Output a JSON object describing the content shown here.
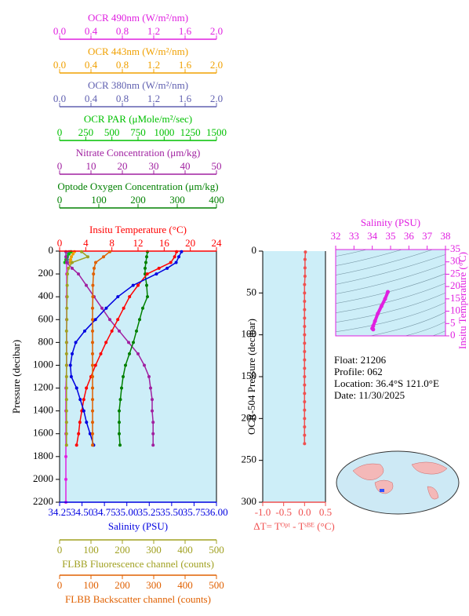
{
  "chart_data": [
    {
      "type": "line",
      "ylabel": "Pressure (decibar)",
      "ylim": [
        0,
        2200
      ],
      "invert_y": true,
      "yticks": [
        0,
        200,
        400,
        600,
        800,
        1000,
        1200,
        1400,
        1600,
        1800,
        2000,
        2200
      ],
      "background": "#cdeef8",
      "top_axes": [
        {
          "label": "OCR 490nm (W/m²/nm)",
          "color": "#e020e0",
          "xlim": [
            0,
            2
          ],
          "xticks": [
            {
              "value": 0,
              "label": "0.0"
            },
            0.4,
            0.8,
            1.2,
            1.6,
            {
              "value": 2,
              "label": "2.0"
            }
          ],
          "pressure": [
            5,
            25,
            50,
            75,
            100,
            200,
            400,
            600,
            800,
            1000,
            1200,
            1400,
            1600,
            1800,
            2000,
            2200
          ],
          "values": [
            0.14,
            0.12,
            0.1,
            0.09,
            0.09,
            0.09,
            0.09,
            0.09,
            0.09,
            0.09,
            0.08,
            0.08,
            0.08,
            0.08,
            0.08,
            0.08
          ]
        },
        {
          "label": "OCR 443nm (W/m²/nm)",
          "color": "#f0a000",
          "xlim": [
            0,
            2
          ],
          "xticks": [
            {
              "value": 0,
              "label": "0.0"
            },
            0.4,
            0.8,
            1.2,
            1.6,
            {
              "value": 2,
              "label": "2.0"
            }
          ],
          "pressure": [
            5,
            25,
            50,
            75,
            100
          ],
          "values": [
            0.19,
            0.17,
            0.15,
            0.14,
            0.13
          ]
        },
        {
          "label": "OCR 380nm (W/m²/nm)",
          "color": "#6060b0",
          "xlim": [
            0,
            2
          ],
          "xticks": [
            {
              "value": 0,
              "label": "0.0"
            },
            0.4,
            0.8,
            1.2,
            1.6,
            {
              "value": 2,
              "label": "2.0"
            }
          ],
          "pressure": [
            5,
            25,
            50,
            75,
            100
          ],
          "values": [
            0.12,
            0.11,
            0.1,
            0.1,
            0.1
          ]
        },
        {
          "label": "OCR PAR (μMole/m²/sec)",
          "color": "#00c000",
          "xlim": [
            0,
            1500
          ],
          "xticks": [
            0,
            250,
            500,
            750,
            1000,
            1250,
            1500
          ],
          "pressure": [
            5,
            25,
            50,
            75,
            100
          ],
          "values": [
            110,
            90,
            70,
            60,
            50
          ]
        },
        {
          "label": "Nitrate Concentration (μm/kg)",
          "color": "#a020a0",
          "xlim": [
            0,
            50
          ],
          "xticks": [
            0,
            10,
            20,
            30,
            40,
            50
          ],
          "pressure": [
            5,
            50,
            100,
            150,
            200,
            300,
            400,
            500,
            600,
            700,
            800,
            900,
            1000,
            1100,
            1200,
            1300,
            1400,
            1500,
            1600,
            1700
          ],
          "values": [
            2,
            2,
            2.2,
            4,
            6,
            8.5,
            11,
            13.5,
            16,
            19,
            22,
            25,
            27,
            28.5,
            29,
            29.5,
            29.5,
            29.8,
            29.8,
            29.8
          ]
        },
        {
          "label": "Optode Oxygen Concentration (μm/kg)",
          "color": "#008000",
          "xlim": [
            0,
            400
          ],
          "xticks": [
            0,
            100,
            200,
            300,
            400
          ],
          "pressure": [
            5,
            50,
            100,
            150,
            200,
            300,
            400,
            500,
            600,
            700,
            800,
            900,
            1000,
            1100,
            1200,
            1300,
            1400,
            1500,
            1600,
            1700
          ],
          "values": [
            224,
            222,
            220,
            218,
            218,
            222,
            224,
            212,
            204,
            196,
            188,
            178,
            168,
            162,
            158,
            155,
            152,
            152,
            152,
            154
          ]
        },
        {
          "label": "Insitu Temperature (°C)",
          "color": "#ff0000",
          "xlim": [
            0,
            24
          ],
          "xticks": [
            0,
            4,
            8,
            12,
            16,
            20,
            24
          ],
          "pressure": [
            5,
            50,
            100,
            150,
            200,
            300,
            400,
            500,
            600,
            700,
            800,
            900,
            1000,
            1100,
            1200,
            1300,
            1400,
            1500,
            1600,
            1700
          ],
          "values": [
            17.9,
            17.6,
            17.0,
            15.2,
            13.4,
            12.0,
            10.7,
            9.8,
            8.9,
            8.0,
            7.1,
            6.3,
            5.5,
            4.8,
            4.1,
            3.7,
            3.4,
            3.1,
            2.9,
            2.6
          ]
        }
      ],
      "bottom_axes": [
        {
          "label": "Salinity (PSU)",
          "color": "#0000e0",
          "xlim": [
            34.25,
            36
          ],
          "xticks": [
            34.25,
            {
              "value": 34.5,
              "label": "34.50"
            },
            34.75,
            {
              "value": 35,
              "label": "35.00"
            },
            35.25,
            {
              "value": 35.5,
              "label": "35.50"
            },
            35.75,
            {
              "value": 36,
              "label": "36.00"
            }
          ],
          "pressure": [
            5,
            50,
            100,
            150,
            200,
            300,
            400,
            500,
            600,
            700,
            800,
            900,
            1000,
            1100,
            1200,
            1300,
            1400,
            1500,
            1600,
            1700
          ],
          "values": [
            35.61,
            35.58,
            35.55,
            35.45,
            35.33,
            35.07,
            34.9,
            34.77,
            34.65,
            34.53,
            34.43,
            34.39,
            34.37,
            34.38,
            34.44,
            34.48,
            34.52,
            34.55,
            34.59,
            34.63
          ]
        },
        {
          "label": "FLBB Fluorescence channel (counts)",
          "color": "#a0a020",
          "xlim": [
            0,
            500
          ],
          "xticks": [
            0,
            100,
            200,
            300,
            400,
            500
          ],
          "pressure": [
            5,
            50,
            100,
            150,
            200,
            300,
            400,
            500,
            600,
            700,
            800,
            900,
            1000,
            1100,
            1200,
            1300,
            1400,
            1500,
            1600,
            1700
          ],
          "values": [
            70,
            90,
            40,
            28,
            25,
            24,
            24,
            23,
            23,
            22,
            22,
            22,
            22,
            22,
            22,
            22,
            22,
            22,
            22,
            22
          ]
        },
        {
          "label": "FLBB Backscatter channel (counts)",
          "color": "#e06000",
          "xlim": [
            0,
            500
          ],
          "xticks": [
            0,
            100,
            200,
            300,
            400,
            500
          ],
          "pressure": [
            5,
            50,
            100,
            150,
            200,
            300,
            400,
            500,
            600,
            700,
            800,
            900,
            1000,
            1100,
            1200,
            1300,
            1400,
            1500,
            1600,
            1700
          ],
          "values": [
            160,
            140,
            115,
            110,
            108,
            106,
            106,
            105,
            105,
            105,
            105,
            105,
            105,
            105,
            105,
            105,
            105,
            105,
            105,
            105
          ]
        }
      ]
    },
    {
      "type": "line",
      "ylabel": "OCR-504 Pressure (decibar)",
      "ylim": [
        0,
        300
      ],
      "invert_y": true,
      "yticks": [
        0,
        50,
        100,
        150,
        200,
        250,
        300
      ],
      "background": "#cdeef8",
      "bottom_axes": [
        {
          "label": "ΔT= Tᴼᵖᵗ - Tˢᴮᴱ (°C)",
          "color": "#f05050",
          "xlim": [
            -1,
            0.5
          ],
          "xticks": [
            {
              "value": -1,
              "label": "-1.0"
            },
            -0.5,
            {
              "value": 0,
              "label": "0.0"
            },
            0.5
          ],
          "pressure": [
            1,
            10,
            20,
            30,
            40,
            50,
            60,
            70,
            80,
            90,
            100,
            110,
            120,
            130,
            140,
            150,
            160,
            170,
            180,
            190,
            200,
            210,
            220,
            230
          ],
          "values": [
            0.02,
            0.01,
            0.01,
            0.01,
            0,
            0,
            0,
            0,
            0,
            0,
            0,
            0,
            0,
            0,
            0,
            0,
            0,
            0,
            0,
            0,
            0,
            0,
            0,
            0
          ]
        }
      ]
    },
    {
      "type": "scatter",
      "xlabel": "Salinity (PSU)",
      "ylabel": "Insitu Temperature (°C)",
      "color": "#e020e0",
      "xlim": [
        32,
        38
      ],
      "xticks": [
        32,
        33,
        34,
        35,
        36,
        37,
        38
      ],
      "ylim": [
        0,
        35
      ],
      "yticks": [
        0,
        5,
        10,
        15,
        20,
        25,
        30,
        35
      ],
      "background": "#cdeef8",
      "x": [
        34.85,
        34.7,
        34.5,
        34.3,
        34.15,
        34.05,
        34.0,
        34.05
      ],
      "y": [
        17.8,
        15,
        12,
        9,
        6,
        4,
        3,
        2.6
      ]
    }
  ],
  "info": [
    "Float:  21206",
    "Profile:  062",
    "Location:  36.4°S  121.0°E",
    "Date:  11/30/2025"
  ]
}
